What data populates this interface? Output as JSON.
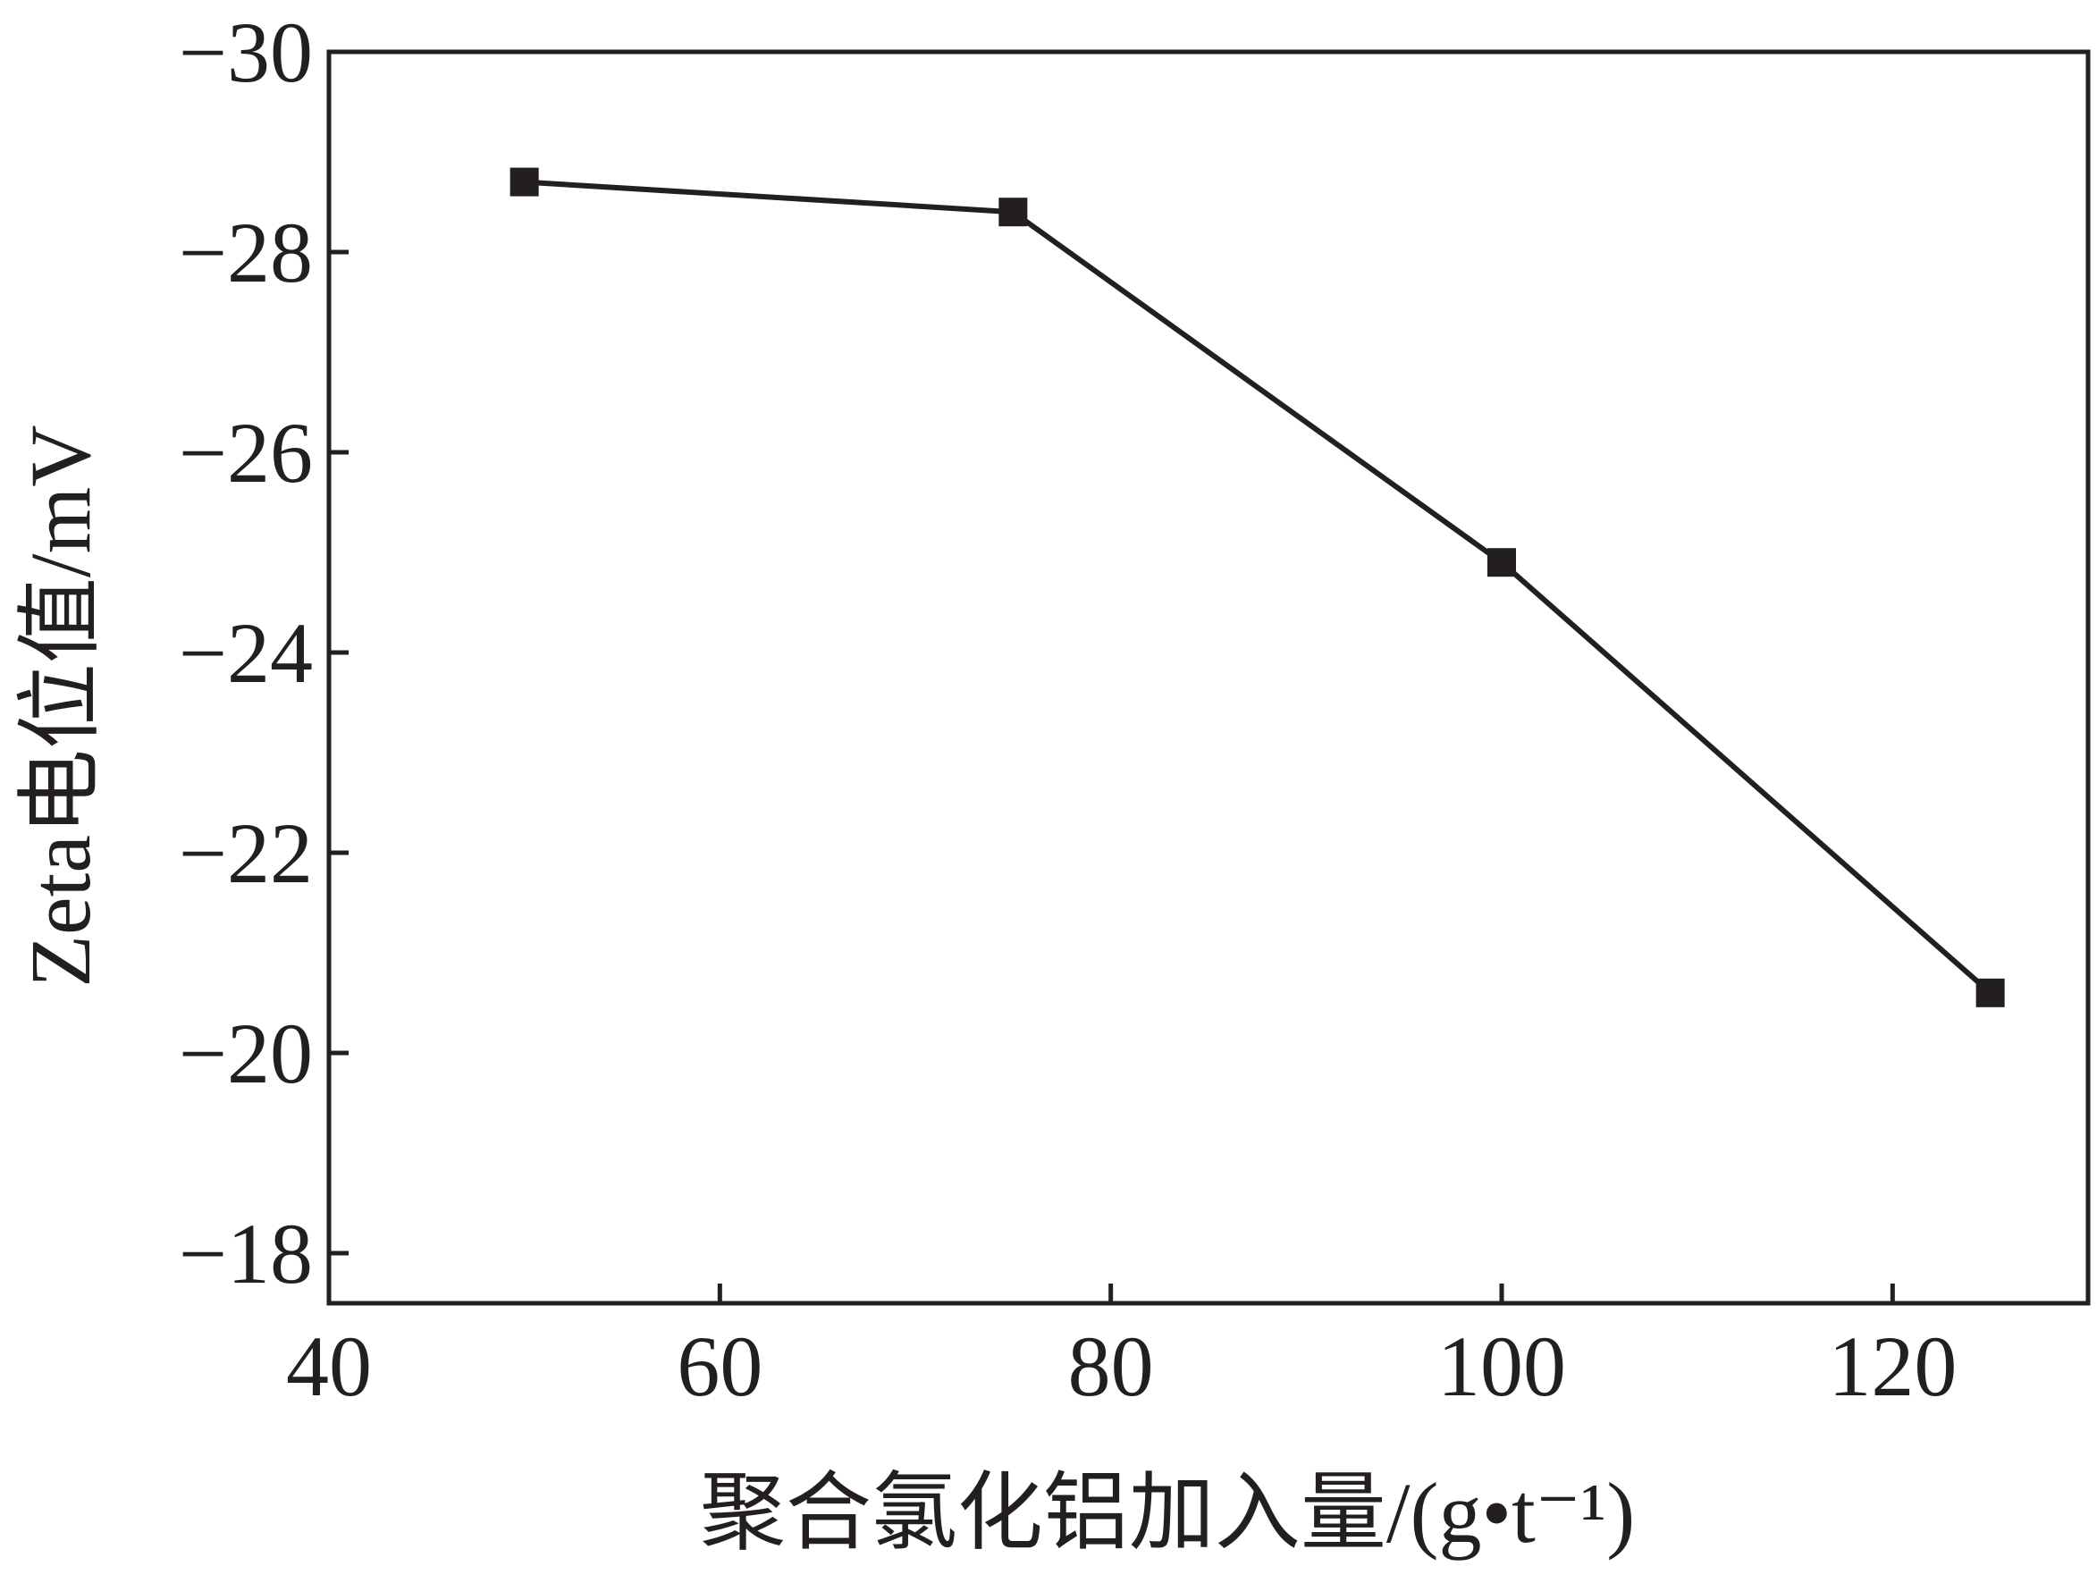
{
  "chart_data": {
    "type": "line",
    "xlabel": "聚合氯化铝加入量/(g•t⁻¹)",
    "ylabel": "Zeta电位值/mV",
    "xlim": [
      40,
      130
    ],
    "ylim": [
      -17.5,
      -30
    ],
    "y_axis_inverted": true,
    "x_ticks": [
      40,
      60,
      80,
      100,
      120
    ],
    "x_tick_labels": [
      "40",
      "60",
      "80",
      "100",
      "120"
    ],
    "y_ticks": [
      -18,
      -20,
      -22,
      -24,
      -26,
      -28,
      -30
    ],
    "y_tick_labels": [
      "−18",
      "−20",
      "−22",
      "−24",
      "−26",
      "−28",
      "−30"
    ],
    "grid": false,
    "series": [
      {
        "x": [
          50,
          75,
          100,
          125
        ],
        "y": [
          -28.7,
          -28.4,
          -24.9,
          -20.6
        ],
        "marker": "square",
        "color": "#231f20"
      }
    ]
  }
}
